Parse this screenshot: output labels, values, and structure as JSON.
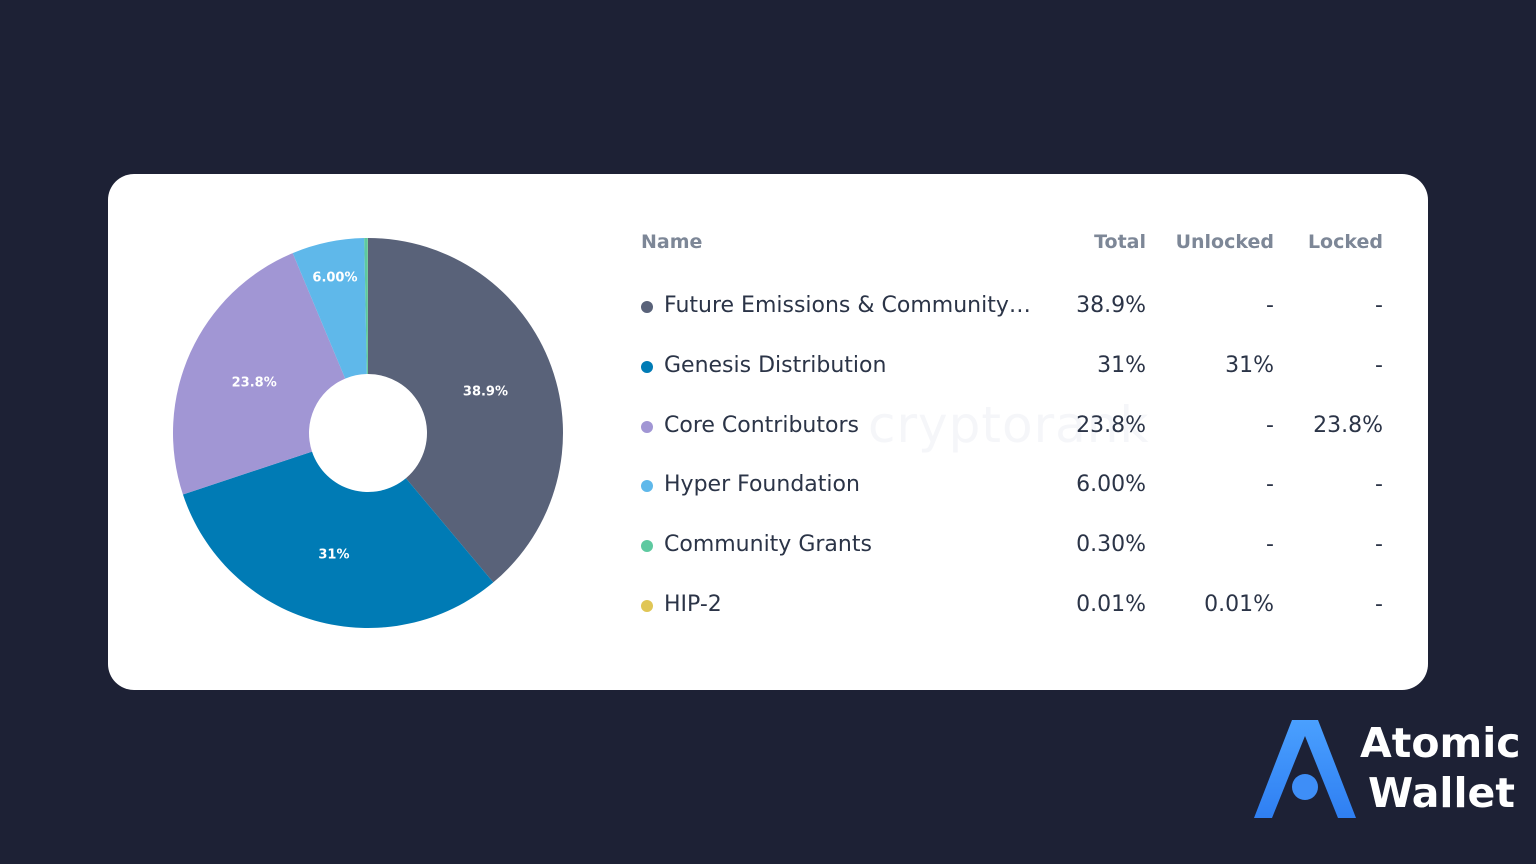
{
  "chart_data": {
    "type": "pie",
    "donut": true,
    "headers": [
      "Name",
      "Total",
      "Unlocked",
      "Locked"
    ],
    "rows": [
      {
        "name": "Future Emissions & Community ...",
        "total": "38.9%",
        "unlocked": "-",
        "locked": "-",
        "value": 38.9,
        "label": "38.9%",
        "color": "#596279"
      },
      {
        "name": "Genesis Distribution",
        "total": "31%",
        "unlocked": "31%",
        "locked": "-",
        "value": 31,
        "label": "31%",
        "color": "#007bb5"
      },
      {
        "name": "Core Contributors",
        "total": "23.8%",
        "unlocked": "-",
        "locked": "23.8%",
        "value": 23.8,
        "label": "23.8%",
        "color": "#a196d4"
      },
      {
        "name": "Hyper Foundation",
        "total": "6.00%",
        "unlocked": "-",
        "locked": "-",
        "value": 6.0,
        "label": "6.00%",
        "color": "#5fb8ea"
      },
      {
        "name": "Community Grants",
        "total": "0.30%",
        "unlocked": "-",
        "locked": "-",
        "value": 0.3,
        "label": "",
        "color": "#5ec9a0"
      },
      {
        "name": "HIP-2",
        "total": "0.01%",
        "unlocked": "0.01%",
        "locked": "-",
        "value": 0.01,
        "label": "",
        "color": "#e0c656"
      }
    ]
  },
  "watermark": "cryptorank",
  "brand": {
    "line1": "Atomic",
    "line2": "Wallet",
    "logo_icon": "atomic-wallet-logo-icon",
    "logo_color": "#3e8ef7"
  }
}
